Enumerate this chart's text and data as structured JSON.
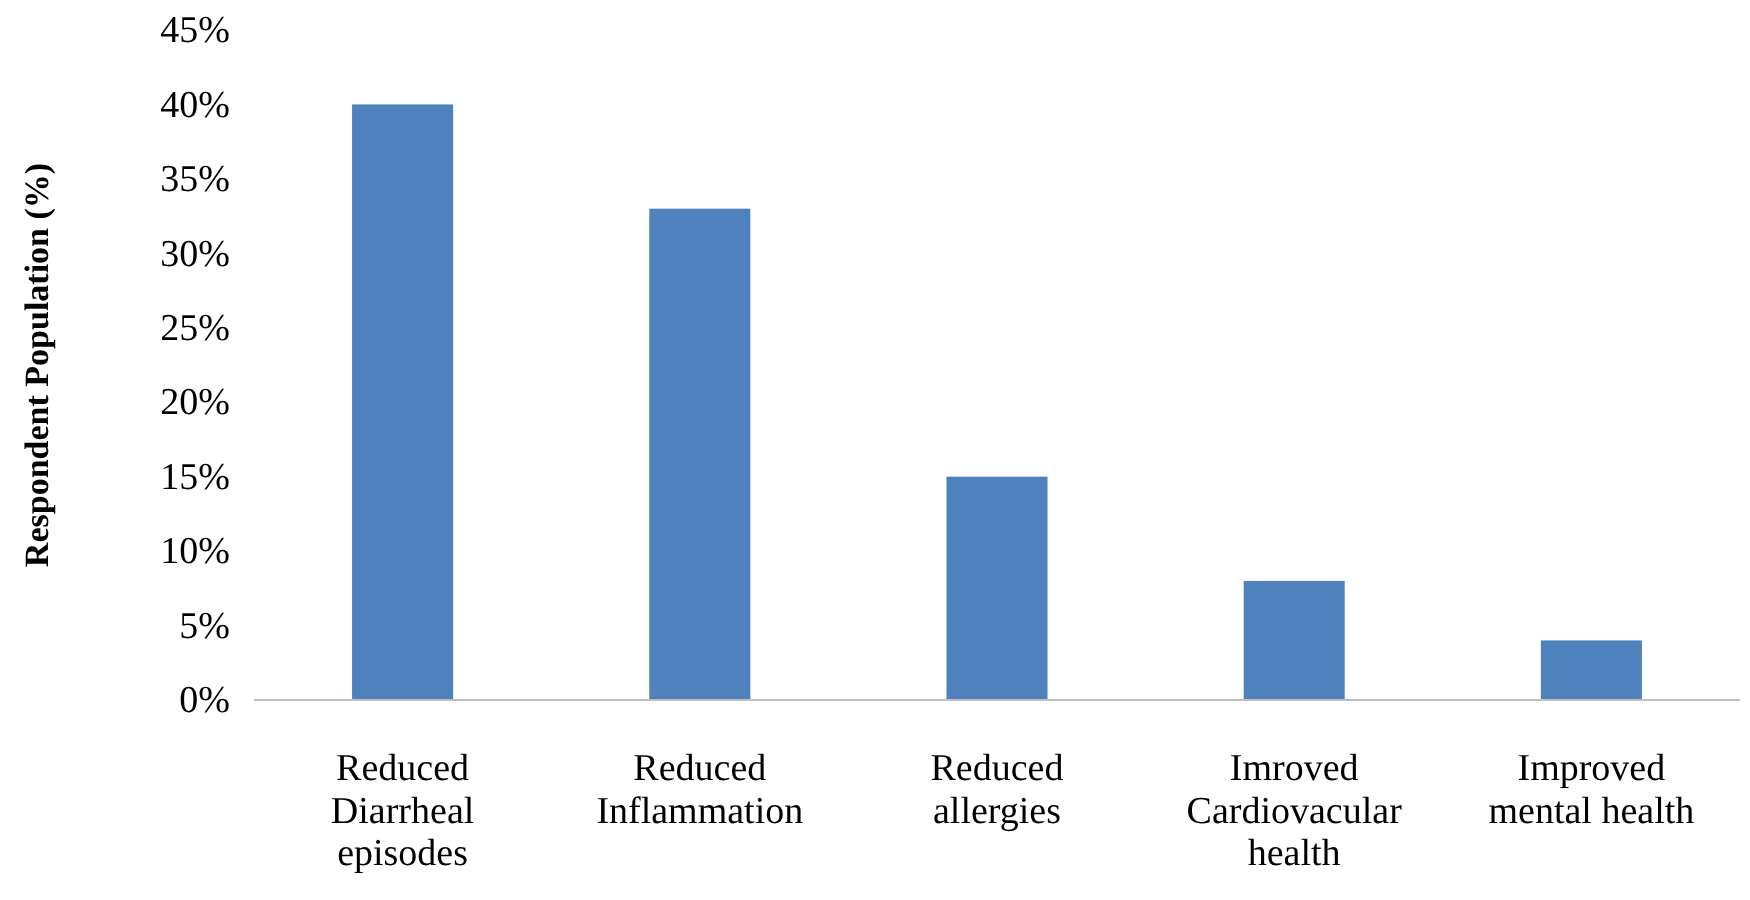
{
  "chart_data": {
    "type": "bar",
    "ylabel": "Respondent Population (%)",
    "categories": [
      "Reduced Diarrheal episodes",
      "Reduced Inflammation",
      "Reduced allergies",
      "Imroved Cardiovacular health",
      "Improved mental health"
    ],
    "values": [
      40,
      33,
      15,
      8,
      4
    ],
    "color": "#4f81bd",
    "ylim": [
      0,
      45
    ],
    "yticks": [
      {
        "value": 0,
        "label": "0%"
      },
      {
        "value": 5,
        "label": "5%"
      },
      {
        "value": 10,
        "label": "10%"
      },
      {
        "value": 15,
        "label": "15%"
      },
      {
        "value": 20,
        "label": "20%"
      },
      {
        "value": 25,
        "label": "25%"
      },
      {
        "value": 30,
        "label": "30%"
      },
      {
        "value": 35,
        "label": "35%"
      },
      {
        "value": 40,
        "label": "40%"
      },
      {
        "value": 45,
        "label": "45%"
      }
    ],
    "grid": false
  }
}
